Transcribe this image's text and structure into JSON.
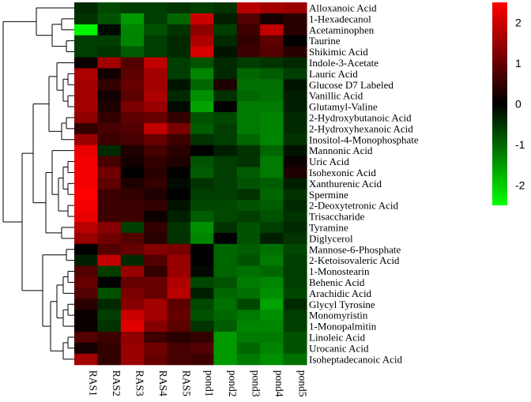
{
  "chart_data": {
    "type": "heatmap",
    "title": "",
    "xlabel": "",
    "ylabel": "",
    "columns": [
      "RAS1",
      "RAS2",
      "RAS3",
      "RAS4",
      "RAS5",
      "pond1",
      "pond2",
      "pond3",
      "pond4",
      "pond5"
    ],
    "rows": [
      "Alloxanoic Acid",
      "1-Hexadecanol",
      "Acetaminophen",
      "Taurine",
      "Shikimic Acid",
      "Indole-3-Acetate",
      "Lauric Acid",
      "Glucose D7 Labeled",
      "Vanillic Acid",
      "Glutamyl-Valine",
      "2-Hydroxybutanoic Acid",
      "2-Hydroxyhexanoic Acid",
      "Inositol-4-Monophosphate",
      "Mannonic Acid",
      "Uric Acid",
      "Isohexonic Acid",
      "Xanthurenic Acid",
      "Spermine",
      "2-Deoxytetronic Acid",
      "Trisaccharide",
      "Tyramine",
      "Diglycerol",
      "Mannose-6-Phosphate",
      "2-Ketoisovaleric Acid",
      "1-Monostearin",
      "Behenic Acid",
      "Arachidic Acid",
      "Glycyl Tyrosine",
      "Monomyristin",
      "1-Monopalmitin",
      "Linoleic Acid",
      "Urocanic Acid",
      "Isoheptadecanoic Acid"
    ],
    "values": [
      [
        -0.4,
        -0.7,
        -0.6,
        -0.6,
        -0.5,
        -0.6,
        -0.5,
        1.8,
        1.6,
        1.5
      ],
      [
        -0.5,
        -0.8,
        -1.5,
        -0.6,
        -1.0,
        2.0,
        -0.3,
        0.8,
        0.2,
        0.4
      ],
      [
        -2.4,
        -0.1,
        -1.3,
        -0.8,
        -0.5,
        1.4,
        -0.6,
        0.6,
        1.9,
        0.4
      ],
      [
        -0.6,
        -0.6,
        -1.3,
        -0.6,
        -0.4,
        1.7,
        -0.4,
        0.5,
        0.9,
        0.0
      ],
      [
        -0.6,
        -0.5,
        -0.9,
        -0.6,
        -0.4,
        2.1,
        -0.2,
        0.6,
        0.8,
        0.4
      ],
      [
        0.1,
        1.6,
        0.8,
        1.9,
        -0.6,
        -0.8,
        -0.4,
        -0.6,
        -0.5,
        -0.4
      ],
      [
        1.7,
        0.2,
        0.9,
        1.6,
        -0.6,
        -1.3,
        -0.4,
        -1.0,
        -0.9,
        -0.6
      ],
      [
        1.6,
        0.5,
        1.0,
        1.6,
        -0.2,
        -1.0,
        0.3,
        -1.1,
        -1.1,
        -0.2
      ],
      [
        1.6,
        0.2,
        0.9,
        1.7,
        -0.4,
        -1.4,
        -0.5,
        -1.0,
        -1.1,
        -0.3
      ],
      [
        1.6,
        0.3,
        1.2,
        1.5,
        -0.1,
        -1.6,
        0.0,
        -1.2,
        -1.2,
        -0.3
      ],
      [
        1.4,
        0.5,
        0.9,
        1.0,
        0.5,
        -0.8,
        -0.7,
        -1.2,
        -1.3,
        -0.4
      ],
      [
        0.5,
        0.7,
        0.8,
        1.9,
        1.2,
        -0.9,
        -0.6,
        -1.2,
        -1.3,
        -0.4
      ],
      [
        1.5,
        0.6,
        0.7,
        1.0,
        0.6,
        -0.5,
        -0.6,
        -1.0,
        -1.3,
        -0.5
      ],
      [
        2.3,
        -0.4,
        0.3,
        0.7,
        0.4,
        0.0,
        -0.3,
        -0.5,
        -1.0,
        -0.2
      ],
      [
        2.4,
        0.7,
        0.2,
        0.5,
        0.3,
        -0.8,
        -0.6,
        -0.5,
        -1.2,
        0.1
      ],
      [
        2.4,
        1.1,
        0.0,
        0.4,
        0.0,
        -0.9,
        -0.6,
        -0.9,
        -1.2,
        0.3
      ],
      [
        2.4,
        0.9,
        0.3,
        0.5,
        -0.1,
        -0.5,
        -0.6,
        -0.8,
        -0.9,
        -0.3
      ],
      [
        2.5,
        0.6,
        0.5,
        0.3,
        0.0,
        -0.6,
        -0.6,
        -0.5,
        -1.0,
        -0.5
      ],
      [
        2.4,
        0.6,
        0.6,
        0.5,
        -0.2,
        -0.7,
        -0.7,
        -0.8,
        -0.9,
        -0.4
      ],
      [
        2.3,
        0.6,
        0.6,
        0.1,
        -0.3,
        -0.9,
        -0.7,
        -0.6,
        -0.8,
        -0.5
      ],
      [
        1.8,
        1.3,
        -0.6,
        0.5,
        -0.5,
        -1.4,
        -0.5,
        -0.8,
        -0.6,
        -0.4
      ],
      [
        1.5,
        1.1,
        0.8,
        0.4,
        -0.5,
        -1.3,
        0.0,
        -0.8,
        -0.3,
        -0.5
      ],
      [
        0.0,
        0.8,
        1.0,
        1.3,
        1.2,
        0.0,
        -1.0,
        -0.9,
        -1.1,
        -0.7
      ],
      [
        -0.3,
        1.9,
        -0.4,
        0.8,
        1.5,
        0.0,
        -1.0,
        -0.8,
        -1.2,
        -0.6
      ],
      [
        0.8,
        -0.6,
        1.5,
        0.5,
        1.5,
        -0.1,
        -1.0,
        -1.1,
        -1.0,
        -0.6
      ],
      [
        1.0,
        0.0,
        1.0,
        1.0,
        1.7,
        -0.7,
        -0.8,
        -1.2,
        -1.3,
        -0.6
      ],
      [
        0.8,
        -0.8,
        1.2,
        1.0,
        1.8,
        -0.3,
        -1.0,
        -1.1,
        -1.4,
        -0.7
      ],
      [
        0.4,
        -0.4,
        1.3,
        1.6,
        0.9,
        -0.7,
        -1.1,
        -0.7,
        -1.6,
        -0.4
      ],
      [
        0.1,
        -0.6,
        2.0,
        1.6,
        1.0,
        -0.8,
        -1.0,
        -1.2,
        -1.4,
        -0.6
      ],
      [
        0.1,
        -0.5,
        2.2,
        1.3,
        0.9,
        -0.5,
        -0.9,
        -1.3,
        -1.3,
        -0.6
      ],
      [
        0.8,
        0.6,
        1.4,
        0.6,
        0.4,
        0.5,
        -1.5,
        -1.2,
        -1.2,
        -0.8
      ],
      [
        0.2,
        0.5,
        1.5,
        1.1,
        0.7,
        0.8,
        -1.5,
        -1.0,
        -1.3,
        -0.8
      ],
      [
        1.6,
        0.5,
        1.5,
        1.0,
        0.7,
        0.6,
        -1.5,
        -1.2,
        -1.4,
        -1.1
      ]
    ],
    "color_scale": {
      "min": -2.5,
      "max": 2.5,
      "low_color": "#00ff00",
      "mid_color": "#000000",
      "high_color": "#ff0000",
      "ticks": [
        2,
        1,
        0,
        -1,
        -2
      ]
    },
    "legend_position": "top-right",
    "dendrogram": "rows-left"
  }
}
